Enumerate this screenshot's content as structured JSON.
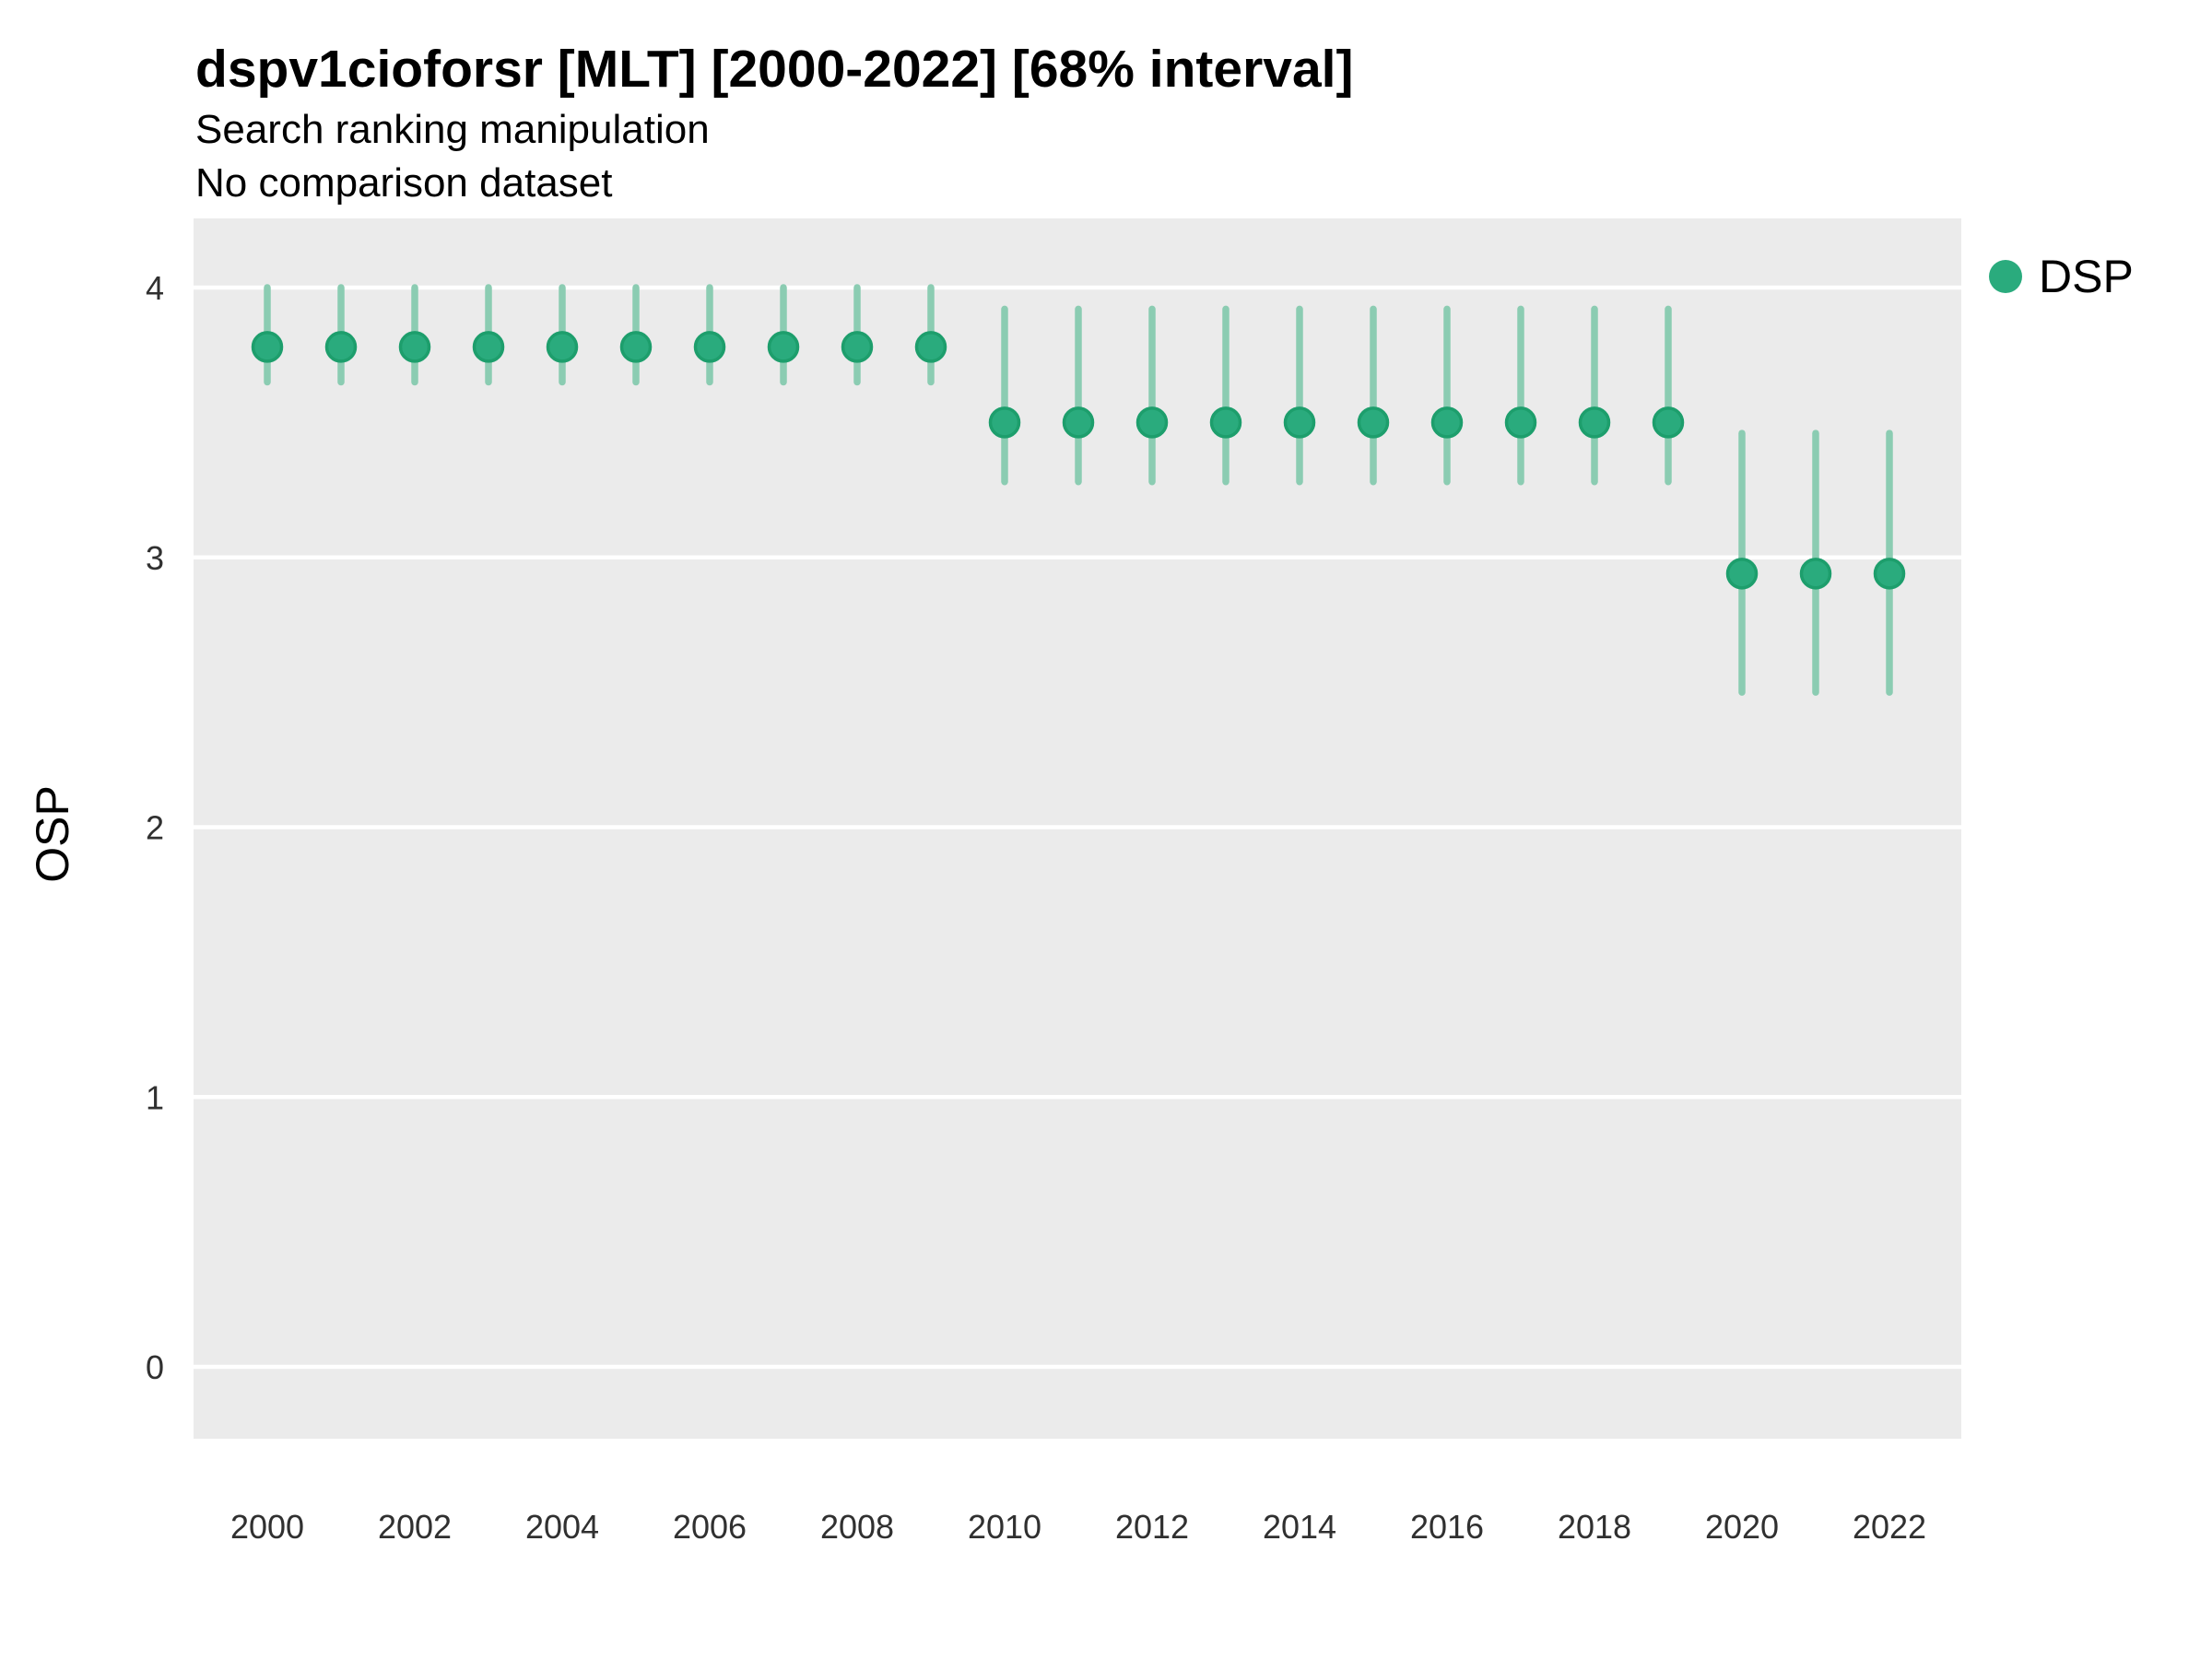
{
  "header": {
    "title": "dspv1cioforsr [MLT] [2000-2022] [68% interval]",
    "subtitle": "Search ranking manipulation",
    "note": "No comparison dataset"
  },
  "legend": {
    "label": "DSP"
  },
  "colors": {
    "point": "#2aab7d",
    "point_stroke": "#1d9e6c",
    "interval": "#8bccb2",
    "panel_bg": "#ebebeb",
    "gridline": "#ffffff",
    "tick_label": "#303030"
  },
  "chart_data": {
    "type": "scatter",
    "subtype": "pointrange",
    "title": "dspv1cioforsr [MLT] [2000-2022] [68% interval]",
    "subtitle": "Search ranking manipulation",
    "note": "No comparison dataset",
    "xlabel": "",
    "ylabel": "OSP",
    "interval_label": "68% interval",
    "legend_position": "right",
    "grid": "horizontal-major-only",
    "xlim": [
      1999,
      2023
    ],
    "ylim": [
      -0.27,
      4.26
    ],
    "yticks": [
      0,
      1,
      2,
      3,
      4
    ],
    "xticks": [
      2000,
      2002,
      2004,
      2006,
      2008,
      2010,
      2012,
      2014,
      2016,
      2018,
      2020,
      2022
    ],
    "series": [
      {
        "name": "DSP",
        "x": [
          2000,
          2001,
          2002,
          2003,
          2004,
          2005,
          2006,
          2007,
          2008,
          2009,
          2010,
          2011,
          2012,
          2013,
          2014,
          2015,
          2016,
          2017,
          2018,
          2019,
          2020,
          2021,
          2022
        ],
        "y": [
          3.78,
          3.78,
          3.78,
          3.78,
          3.78,
          3.78,
          3.78,
          3.78,
          3.78,
          3.78,
          3.5,
          3.5,
          3.5,
          3.5,
          3.5,
          3.5,
          3.5,
          3.5,
          3.5,
          3.5,
          2.94,
          2.94,
          2.94
        ],
        "y_low": [
          3.65,
          3.65,
          3.65,
          3.65,
          3.65,
          3.65,
          3.65,
          3.65,
          3.65,
          3.65,
          3.28,
          3.28,
          3.28,
          3.28,
          3.28,
          3.28,
          3.28,
          3.28,
          3.28,
          3.28,
          2.5,
          2.5,
          2.5
        ],
        "y_high": [
          4.0,
          4.0,
          4.0,
          4.0,
          4.0,
          4.0,
          4.0,
          4.0,
          4.0,
          4.0,
          3.92,
          3.92,
          3.92,
          3.92,
          3.92,
          3.92,
          3.92,
          3.92,
          3.92,
          3.92,
          3.46,
          3.46,
          3.46
        ]
      }
    ]
  }
}
